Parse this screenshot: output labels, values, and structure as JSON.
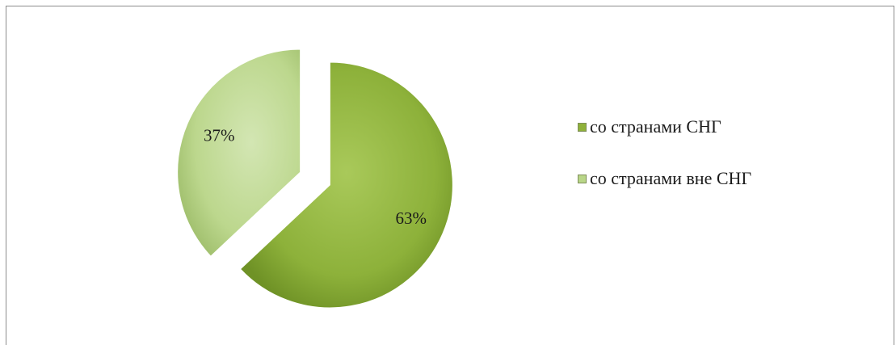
{
  "chart_data": {
    "type": "pie",
    "title": "",
    "categories": [
      "со странами СНГ",
      "со странами вне СНГ"
    ],
    "values": [
      63,
      37
    ],
    "labels": [
      "63%",
      "37%"
    ],
    "colors": [
      "#8fb13a",
      "#b9d688"
    ],
    "exploded": true,
    "legend_position": "right"
  }
}
